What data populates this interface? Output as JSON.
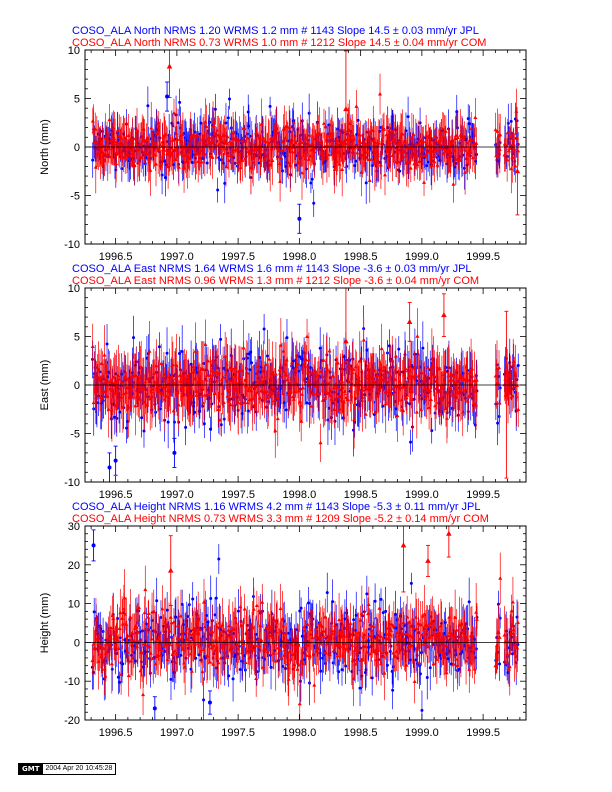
{
  "colors": {
    "jpl": "#0000ff",
    "com": "#ff0000",
    "axis": "#000000"
  },
  "chart_data": [
    {
      "type": "scatter",
      "component": "North",
      "ylabel": "North (mm)",
      "ylim": [
        -10,
        10
      ],
      "yticks": [
        -10,
        -5,
        0,
        5,
        10
      ],
      "xlim": [
        1996.25,
        1999.85
      ],
      "xticks": [
        1996.5,
        1997.0,
        1997.5,
        1998.0,
        1998.5,
        1999.0,
        1999.5
      ],
      "xtick_labels": [
        "1996.5",
        "1997.0",
        "1997.5",
        "1998.0",
        "1998.5",
        "1999.0",
        "1999.5"
      ],
      "grid": false,
      "legend": [
        "COSO_ALA North NRMS 1.20 WRMS  1.2 mm # 1143 Slope   14.5 ±  0.03 mm/yr JPL",
        "COSO_ALA North NRMS 0.73 WRMS  1.0 mm # 1212 Slope   14.5 ±  0.04 mm/yr COM"
      ],
      "series": [
        {
          "name": "JPL",
          "marker": "circle",
          "n": 1143,
          "nrms": 1.2,
          "wrms": 1.2,
          "slope": 14.5,
          "slope_sigma": 0.03,
          "scatter_sd": 1.3,
          "error_bar": 1.6
        },
        {
          "name": "COM",
          "marker": "triangle",
          "n": 1212,
          "nrms": 0.73,
          "wrms": 1.0,
          "slope": 14.5,
          "slope_sigma": 0.04,
          "scatter_sd": 1.1,
          "error_bar": 2.0
        }
      ],
      "outliers": [
        {
          "series": "COM",
          "x": 1996.94,
          "y": 8.3,
          "err": 3.2
        },
        {
          "series": "COM",
          "x": 1998.38,
          "y": 3.9,
          "err": 6.0
        },
        {
          "series": "COM",
          "x": 1999.78,
          "y": -2.5,
          "err": 4.5
        },
        {
          "series": "JPL",
          "x": 1998.0,
          "y": -7.4,
          "err": 1.5
        },
        {
          "series": "JPL",
          "x": 1996.92,
          "y": 5.2,
          "err": 1.5
        }
      ]
    },
    {
      "type": "scatter",
      "component": "East",
      "ylabel": "East (mm)",
      "ylim": [
        -10,
        10
      ],
      "yticks": [
        -10,
        -5,
        0,
        5,
        10
      ],
      "xlim": [
        1996.25,
        1999.85
      ],
      "xticks": [
        1996.5,
        1997.0,
        1997.5,
        1998.0,
        1998.5,
        1999.0,
        1999.5
      ],
      "xtick_labels": [
        "1996.5",
        "1997.0",
        "1997.5",
        "1998.0",
        "1998.5",
        "1999.0",
        "1999.5"
      ],
      "grid": false,
      "legend": [
        "COSO_ALA East NRMS 1.64 WRMS  1.6 mm # 1143 Slope   -3.6 ±  0.03 mm/yr JPL",
        "COSO_ALA East NRMS 0.96 WRMS  1.3 mm # 1212 Slope   -3.6 ±  0.04 mm/yr COM"
      ],
      "series": [
        {
          "name": "JPL",
          "marker": "circle",
          "n": 1143,
          "nrms": 1.64,
          "wrms": 1.6,
          "slope": -3.6,
          "slope_sigma": 0.03,
          "scatter_sd": 1.8,
          "error_bar": 2.0
        },
        {
          "name": "COM",
          "marker": "triangle",
          "n": 1212,
          "nrms": 0.96,
          "wrms": 1.3,
          "slope": -3.6,
          "slope_sigma": 0.04,
          "scatter_sd": 1.4,
          "error_bar": 2.4
        }
      ],
      "outliers": [
        {
          "series": "COM",
          "x": 1998.38,
          "y": 4.5,
          "err": 5.5
        },
        {
          "series": "COM",
          "x": 1999.18,
          "y": 7.2,
          "err": 2.2
        },
        {
          "series": "COM",
          "x": 1998.9,
          "y": 6.5,
          "err": 2.0
        },
        {
          "series": "COM",
          "x": 1999.69,
          "y": -1.0,
          "err": 8.6
        },
        {
          "series": "JPL",
          "x": 1996.45,
          "y": -8.5,
          "err": 1.5
        },
        {
          "series": "JPL",
          "x": 1996.5,
          "y": -7.8,
          "err": 1.5
        },
        {
          "series": "JPL",
          "x": 1996.98,
          "y": -7.0,
          "err": 1.5
        }
      ]
    },
    {
      "type": "scatter",
      "component": "Height",
      "ylabel": "Height (mm)",
      "ylim": [
        -20,
        30
      ],
      "yticks": [
        -20,
        -10,
        0,
        10,
        20,
        30
      ],
      "xlim": [
        1996.25,
        1999.85
      ],
      "xticks": [
        1996.5,
        1997.0,
        1997.5,
        1998.0,
        1998.5,
        1999.0,
        1999.5
      ],
      "xtick_labels": [
        "1996.5",
        "1997.0",
        "1997.5",
        "1998.0",
        "1998.5",
        "1999.0",
        "1999.5"
      ],
      "grid": false,
      "legend": [
        "COSO_ALA Height NRMS 1.16 WRMS  4.2 mm # 1143 Slope   -5.3 ±  0.11 mm/yr JPL",
        "COSO_ALA Height NRMS 0.73 WRMS  3.3 mm # 1209 Slope   -5.2 ±  0.14 mm/yr COM"
      ],
      "series": [
        {
          "name": "JPL",
          "marker": "circle",
          "n": 1143,
          "nrms": 1.16,
          "wrms": 4.2,
          "slope": -5.3,
          "slope_sigma": 0.11,
          "scatter_sd": 4.6,
          "error_bar": 4.5
        },
        {
          "name": "COM",
          "marker": "triangle",
          "n": 1209,
          "nrms": 0.73,
          "wrms": 3.3,
          "slope": -5.2,
          "slope_sigma": 0.14,
          "scatter_sd": 3.8,
          "error_bar": 5.5
        }
      ],
      "outliers": [
        {
          "series": "JPL",
          "x": 1996.32,
          "y": 25.0,
          "err": 4.0
        },
        {
          "series": "COM",
          "x": 1996.95,
          "y": 18.5,
          "err": 9.0
        },
        {
          "series": "COM",
          "x": 1998.85,
          "y": 25.0,
          "err": 12.0
        },
        {
          "series": "COM",
          "x": 1999.22,
          "y": 28.0,
          "err": 6.0
        },
        {
          "series": "COM",
          "x": 1999.05,
          "y": 21.0,
          "err": 4.0
        },
        {
          "series": "JPL",
          "x": 1997.27,
          "y": -15.5,
          "err": 3.0
        },
        {
          "series": "JPL",
          "x": 1996.82,
          "y": -17.0,
          "err": 3.0
        }
      ]
    }
  ],
  "gmt": {
    "logo": "GMT",
    "timestamp": "2004 Apr 20 10:45:28"
  }
}
